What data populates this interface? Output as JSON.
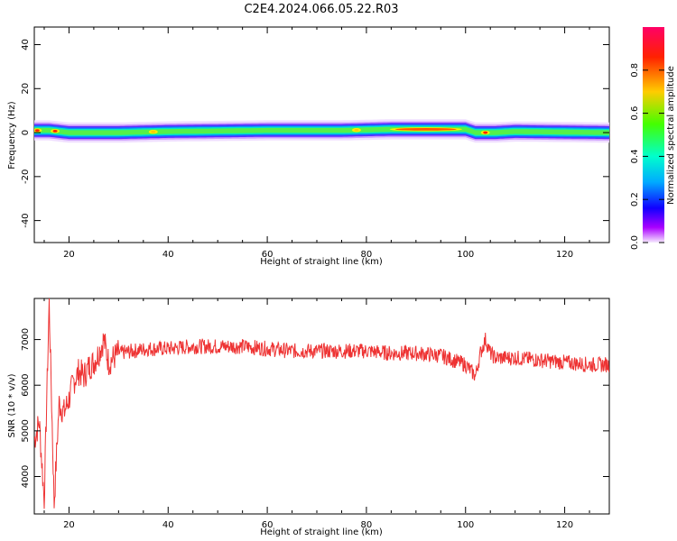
{
  "title": "C2E4.2024.066.05.22.R03",
  "chart_data": [
    {
      "type": "heatmap",
      "xlabel": "Height of straight line (km)",
      "ylabel": "Frequency (Hz)",
      "xlim": [
        13,
        129
      ],
      "ylim": [
        -50,
        48
      ],
      "xticks": [
        20,
        40,
        60,
        80,
        100,
        120
      ],
      "yticks": [
        -40,
        -20,
        0,
        20,
        40
      ],
      "band_center_hz": [
        [
          13,
          1
        ],
        [
          16,
          1
        ],
        [
          20,
          0
        ],
        [
          30,
          0
        ],
        [
          40,
          0.5
        ],
        [
          60,
          1
        ],
        [
          75,
          1
        ],
        [
          85,
          1.5
        ],
        [
          95,
          1.5
        ],
        [
          100,
          1.5
        ],
        [
          102,
          0
        ],
        [
          106,
          0
        ],
        [
          110,
          0.5
        ],
        [
          129,
          0
        ]
      ],
      "band_halfwidth_hz": 2.5,
      "colorbar": {
        "label": "Normalized spectral amplitude",
        "range": [
          0,
          1
        ],
        "ticks": [
          "0.0",
          "0.2",
          "0.4",
          "0.6",
          "0.8"
        ]
      }
    },
    {
      "type": "line",
      "xlabel": "Height of straight line (km)",
      "ylabel": "SNR (10 * v/v)",
      "xlim": [
        13,
        129
      ],
      "ylim": [
        3200,
        7900
      ],
      "xticks": [
        20,
        40,
        60,
        80,
        100,
        120
      ],
      "yticks": [
        4000,
        5000,
        6000,
        7000
      ],
      "color": "#ee3333",
      "x": [
        13,
        14,
        15,
        16,
        17,
        18,
        19,
        20,
        21,
        22,
        23,
        24,
        25,
        26,
        27,
        28,
        30,
        33,
        36,
        40,
        45,
        50,
        55,
        60,
        65,
        70,
        75,
        80,
        85,
        90,
        95,
        100,
        102,
        103,
        104,
        105,
        106,
        108,
        110,
        115,
        120,
        125,
        129
      ],
      "y": [
        4800,
        5200,
        3500,
        7800,
        3400,
        5600,
        5400,
        5700,
        6100,
        6300,
        6200,
        6400,
        6500,
        6700,
        7000,
        6500,
        6700,
        6750,
        6800,
        6800,
        6850,
        6850,
        6850,
        6800,
        6750,
        6750,
        6750,
        6750,
        6700,
        6700,
        6650,
        6450,
        6200,
        6700,
        7000,
        6700,
        6600,
        6600,
        6600,
        6550,
        6500,
        6450,
        6450
      ]
    }
  ]
}
